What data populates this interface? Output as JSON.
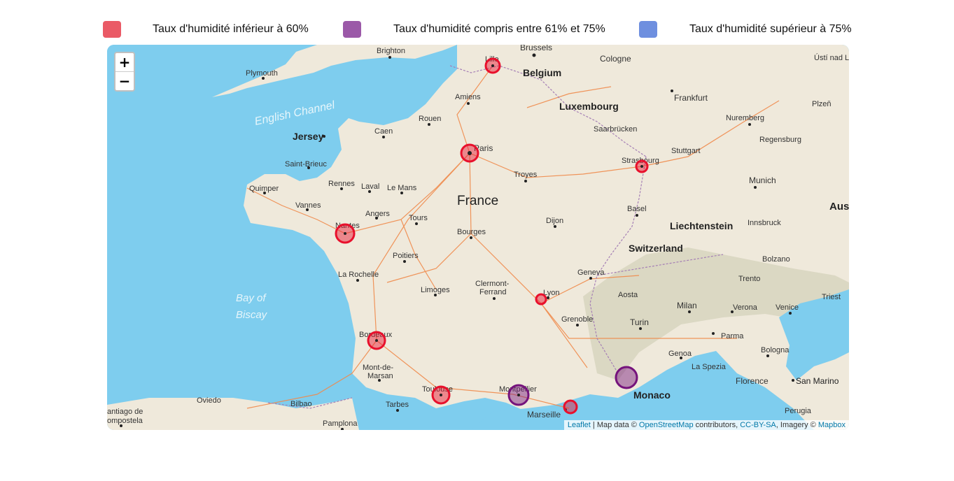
{
  "legend": [
    {
      "label": "Taux d'humidité inférieur à 60%",
      "color": "#ea5a66"
    },
    {
      "label": "Taux d'humidité compris entre 61% et 75%",
      "color": "#9b59a8"
    },
    {
      "label": "Taux d'humidité supérieur à 75%",
      "color": "#6e8fdf"
    }
  ],
  "zoom": {
    "in": "+",
    "out": "−"
  },
  "attribution": {
    "leaflet": "Leaflet",
    "sep": " | Map data © ",
    "osm": "OpenStreetMap",
    "contributors": " contributors, ",
    "ccbysa": "CC-BY-SA",
    "imagery": ", Imagery © ",
    "mapbox": "Mapbox"
  },
  "colors": {
    "sea": "#7ecdee",
    "land": "#efe9db",
    "road": "#f08a4b",
    "low": "#e8102c",
    "mid": "#75137c"
  },
  "places": {
    "brussels": "Brussels",
    "brighton": "Brighton",
    "plymouth": "Plymouth",
    "english_channel": "English Channel",
    "lille": "Lille",
    "belgium": "Belgium",
    "cologne": "Cologne",
    "amiens": "Amiens",
    "luxembourg": "Luxembourg",
    "frankfurt": "Frankfurt",
    "plzen": "Plzeň",
    "usti": "Ústí nad L",
    "jersey": "Jersey",
    "caen": "Caen",
    "rouen": "Rouen",
    "saarbrucken": "Saarbrücken",
    "nuremberg": "Nuremberg",
    "regensburg": "Regensburg",
    "paris": "Paris",
    "strasbourg": "Strasbourg",
    "stuttgart": "Stuttgart",
    "saint_brieuc": "Saint-Brieuc",
    "rennes": "Rennes",
    "laval": "Laval",
    "le_mans": "Le Mans",
    "troyes": "Troyes",
    "quimper": "Quimper",
    "munich": "Munich",
    "vannes": "Vannes",
    "france": "France",
    "angers": "Angers",
    "basel": "Basel",
    "tours": "Tours",
    "nantes": "Nantes",
    "bourges": "Bourges",
    "dijon": "Dijon",
    "liechtenstein": "Liechtenstein",
    "innsbruck": "Innsbruck",
    "switzerland": "Switzerland",
    "poitiers": "Poitiers",
    "bolzano": "Bolzano",
    "la_rochelle": "La Rochelle",
    "geneva": "Geneva",
    "bay1": "Bay of",
    "bay2": "Biscay",
    "limoges": "Limoges",
    "clermont1": "Clermont-",
    "clermont2": "Ferrand",
    "lyon": "Lyon",
    "aosta": "Aosta",
    "trento": "Trento",
    "triest": "Triest",
    "milan": "Milan",
    "verona": "Verona",
    "venice": "Venice",
    "grenoble": "Grenoble",
    "turin": "Turin",
    "bordeaux": "Bordeaux",
    "parma": "Parma",
    "bologna": "Bologna",
    "genoa": "Genoa",
    "la_spezia": "La Spezia",
    "mont1": "Mont-de-",
    "mont2": "Marsan",
    "florence": "Florence",
    "san_marino": "San Marino",
    "toulouse": "Toulouse",
    "montpellier": "Montpellier",
    "monaco": "Monaco",
    "oviedo": "Oviedo",
    "bilbao": "Bilbao",
    "tarbes": "Tarbes",
    "marseille": "Marseille",
    "perugia": "Perugia",
    "santiago1": "antiago de",
    "santiago2": "ompostela",
    "pamplona": "Pamplona",
    "aus": "Aus"
  }
}
